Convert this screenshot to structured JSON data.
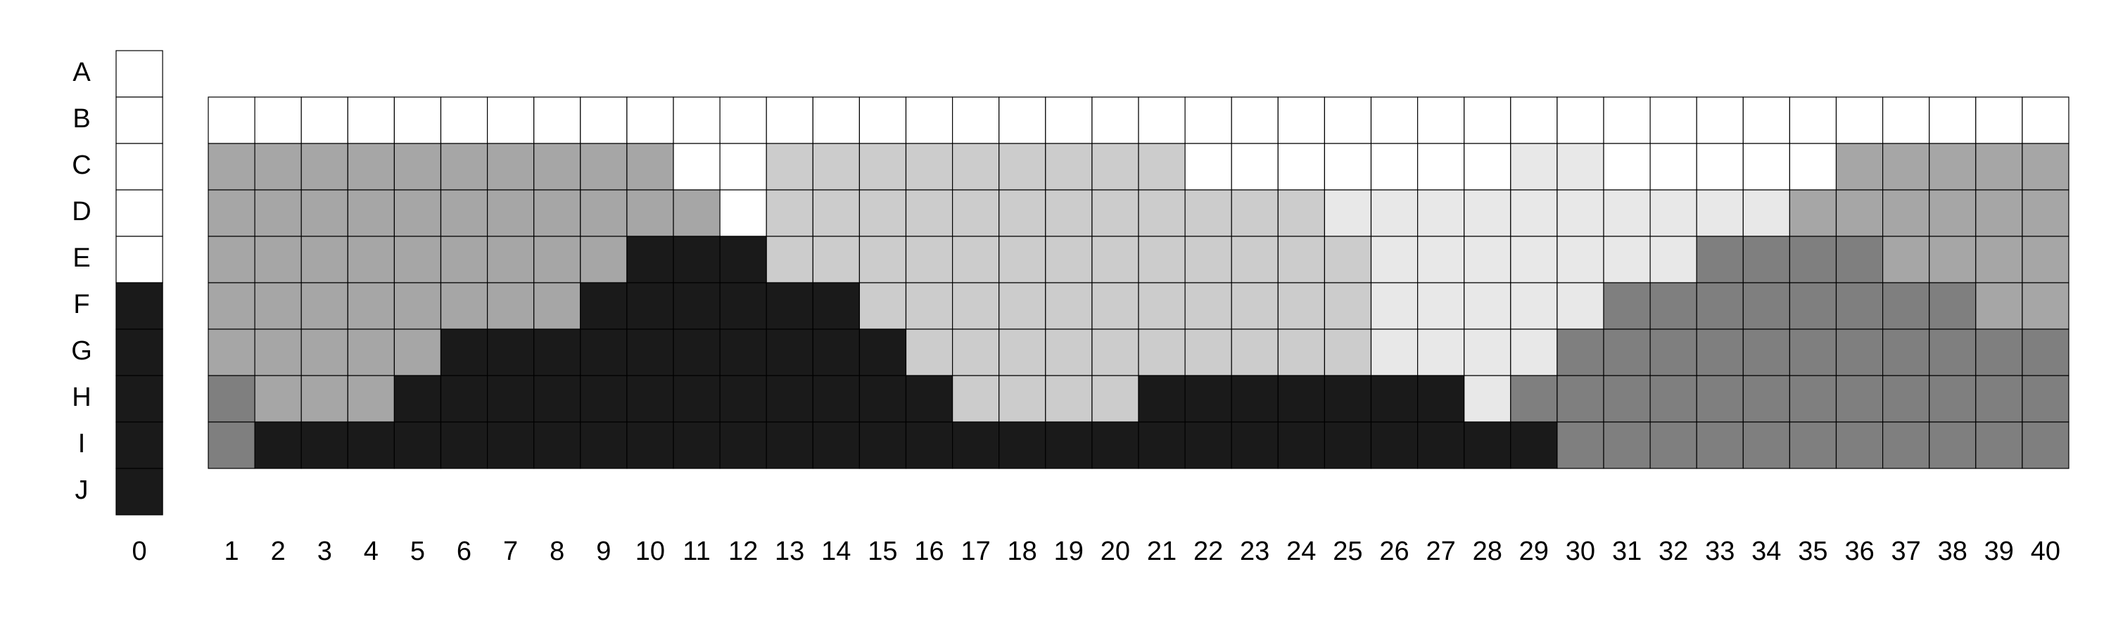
{
  "chart_data": {
    "type": "heatmap",
    "row_labels": [
      "A",
      "B",
      "C",
      "D",
      "E",
      "F",
      "G",
      "H",
      "I",
      "J"
    ],
    "col_labels": [
      "0",
      "1",
      "2",
      "3",
      "4",
      "5",
      "6",
      "7",
      "8",
      "9",
      "10",
      "11",
      "12",
      "13",
      "14",
      "15",
      "16",
      "17",
      "18",
      "19",
      "20",
      "21",
      "22",
      "23",
      "24",
      "25",
      "26",
      "27",
      "28",
      "29",
      "30",
      "31",
      "32",
      "33",
      "34",
      "35",
      "36",
      "37",
      "38",
      "39",
      "40"
    ],
    "palette": {
      "0": "#ffffff",
      "1": "#e8e8e8",
      "2": "#cccccc",
      "3": "#a6a6a6",
      "4": "#7f7f7f",
      "5": "#1a1a1a"
    },
    "reference_column": {
      "label": "0",
      "values": [
        0,
        0,
        0,
        0,
        0,
        5,
        5,
        5,
        5,
        5
      ]
    },
    "grid": {
      "rows": [
        "B",
        "C",
        "D",
        "E",
        "F",
        "G",
        "H",
        "I"
      ],
      "values": [
        [
          0,
          0,
          0,
          0,
          0,
          0,
          0,
          0,
          0,
          0,
          0,
          0,
          0,
          0,
          0,
          0,
          0,
          0,
          0,
          0,
          0,
          0,
          0,
          0,
          0,
          0,
          0,
          0,
          0,
          0,
          0,
          0,
          0,
          0,
          0,
          0,
          0,
          0,
          0,
          0
        ],
        [
          3,
          3,
          3,
          3,
          3,
          3,
          3,
          3,
          3,
          3,
          0,
          0,
          2,
          2,
          2,
          2,
          2,
          2,
          2,
          2,
          2,
          0,
          0,
          0,
          0,
          0,
          0,
          0,
          1,
          1,
          0,
          0,
          0,
          0,
          0,
          3,
          3,
          3,
          3,
          3
        ],
        [
          3,
          3,
          3,
          3,
          3,
          3,
          3,
          3,
          3,
          3,
          3,
          0,
          2,
          2,
          2,
          2,
          2,
          2,
          2,
          2,
          2,
          2,
          2,
          2,
          1,
          1,
          1,
          1,
          1,
          1,
          1,
          1,
          1,
          1,
          3,
          3,
          3,
          3,
          3,
          3
        ],
        [
          3,
          3,
          3,
          3,
          3,
          3,
          3,
          3,
          3,
          5,
          5,
          5,
          2,
          2,
          2,
          2,
          2,
          2,
          2,
          2,
          2,
          2,
          2,
          2,
          2,
          1,
          1,
          1,
          1,
          1,
          1,
          1,
          4,
          4,
          4,
          4,
          3,
          3,
          3,
          3
        ],
        [
          3,
          3,
          3,
          3,
          3,
          3,
          3,
          3,
          5,
          5,
          5,
          5,
          5,
          5,
          2,
          2,
          2,
          2,
          2,
          2,
          2,
          2,
          2,
          2,
          2,
          1,
          1,
          1,
          1,
          1,
          4,
          4,
          4,
          4,
          4,
          4,
          4,
          4,
          3,
          3
        ],
        [
          3,
          3,
          3,
          3,
          3,
          5,
          5,
          5,
          5,
          5,
          5,
          5,
          5,
          5,
          5,
          2,
          2,
          2,
          2,
          2,
          2,
          2,
          2,
          2,
          2,
          1,
          1,
          1,
          1,
          4,
          4,
          4,
          4,
          4,
          4,
          4,
          4,
          4,
          4,
          4
        ],
        [
          4,
          3,
          3,
          3,
          5,
          5,
          5,
          5,
          5,
          5,
          5,
          5,
          5,
          5,
          5,
          5,
          2,
          2,
          2,
          2,
          5,
          5,
          5,
          5,
          5,
          5,
          5,
          1,
          4,
          4,
          4,
          4,
          4,
          4,
          4,
          4,
          4,
          4,
          4,
          4
        ],
        [
          4,
          5,
          5,
          5,
          5,
          5,
          5,
          5,
          5,
          5,
          5,
          5,
          5,
          5,
          5,
          5,
          5,
          5,
          5,
          5,
          5,
          5,
          5,
          5,
          5,
          5,
          5,
          5,
          5,
          4,
          4,
          4,
          4,
          4,
          4,
          4,
          4,
          4,
          4,
          4
        ]
      ]
    }
  }
}
